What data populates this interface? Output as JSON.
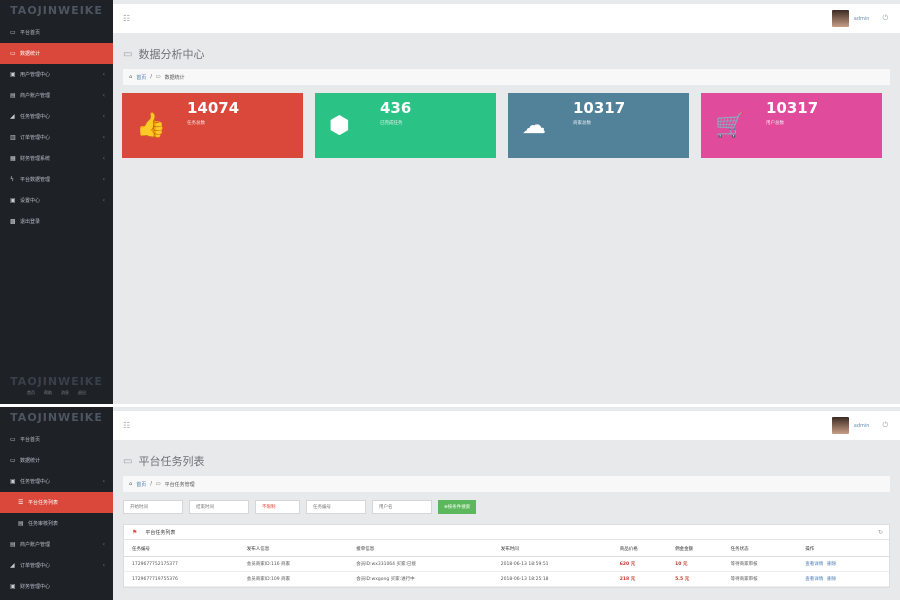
{
  "brand": "TAOJINWEIKE",
  "footer_links": [
    "首页",
    "帮助",
    "消息",
    "退出"
  ],
  "panel1": {
    "nav": [
      {
        "icon": "laptop-icon",
        "glyph": "▭",
        "label": "平台首页"
      },
      {
        "icon": "chart-icon",
        "glyph": "▭",
        "label": "数据统计",
        "active": true
      },
      {
        "icon": "lock-icon",
        "glyph": "▣",
        "label": "用户管理中心"
      },
      {
        "icon": "card-icon",
        "glyph": "▤",
        "label": "商户账户管理"
      },
      {
        "icon": "bar-chart-icon",
        "glyph": "◢",
        "label": "任务管理中心"
      },
      {
        "icon": "list-icon",
        "glyph": "▥",
        "label": "订单管理中心"
      },
      {
        "icon": "file-icon",
        "glyph": "▦",
        "label": "财务管理系统"
      },
      {
        "icon": "bolt-icon",
        "glyph": "ϟ",
        "label": "平台数据管理"
      },
      {
        "icon": "server-icon",
        "glyph": "▣",
        "label": "设置中心"
      },
      {
        "icon": "calendar-icon",
        "glyph": "▩",
        "label": "退出登录"
      }
    ],
    "page_title": "数据分析中心",
    "breadcrumb": {
      "home": "首页",
      "current": "数据统计"
    },
    "user": "admin",
    "stats": [
      {
        "value": "14074",
        "label": "任务总数",
        "color": "#d9483b",
        "icon": "thumbs-up-icon",
        "glyph": "👍"
      },
      {
        "value": "436",
        "label": "已完成任务",
        "color": "#2bc285",
        "icon": "cubes-icon",
        "glyph": "⬢"
      },
      {
        "value": "10317",
        "label": "商家总数",
        "color": "#52829a",
        "icon": "cloud-download-icon",
        "glyph": "☁"
      },
      {
        "value": "10317",
        "label": "用户总数",
        "color": "#e14b9c",
        "icon": "cart-icon",
        "glyph": "🛒"
      }
    ]
  },
  "panel2": {
    "nav": [
      {
        "icon": "laptop-icon",
        "glyph": "▭",
        "label": "平台首页"
      },
      {
        "icon": "chart-icon",
        "glyph": "▭",
        "label": "数据统计"
      },
      {
        "icon": "task-icon",
        "glyph": "▣",
        "label": "任务管理中心"
      },
      {
        "icon": "list-icon",
        "glyph": "☰",
        "label": "平台任务列表",
        "active": true,
        "sub": true
      },
      {
        "icon": "list-icon",
        "glyph": "▤",
        "label": "任务审核列表",
        "sub": true
      },
      {
        "icon": "card-icon",
        "glyph": "▤",
        "label": "商户账户管理"
      },
      {
        "icon": "bar-chart-icon",
        "glyph": "◢",
        "label": "订单管理中心"
      },
      {
        "icon": "server-icon",
        "glyph": "▣",
        "label": "财务管理中心"
      }
    ],
    "page_title": "平台任务列表",
    "breadcrumb": {
      "home": "首页",
      "current": "平台任务管理"
    },
    "user": "admin",
    "filters": [
      {
        "placeholder": "开始时间",
        "width": 60
      },
      {
        "placeholder": "结束时间",
        "width": 60
      },
      {
        "placeholder": "不限制",
        "width": 45,
        "red": true
      },
      {
        "placeholder": "任务编号",
        "width": 60
      },
      {
        "placeholder": "用户名",
        "width": 60
      }
    ],
    "search_button": "按条件搜索",
    "table_title": "平台任务列表",
    "columns": [
      "任务编号",
      "发布人信息",
      "接单信息",
      "发布时间",
      "商品价格",
      "佣金金额",
      "任务状态",
      "操作"
    ],
    "rows": [
      {
        "id": "1729677752175377",
        "publisher": "会员商家ID:116 商家",
        "receiver": "会员ID:wx331064 买家:已接",
        "time": "2018-06-13 18:59:51",
        "price": "620",
        "price_unit": "元",
        "commission": "10",
        "commission_unit": "元",
        "status": "等待商家审核",
        "actions": [
          "查看详情",
          "删除"
        ]
      },
      {
        "id": "1729677719755376",
        "publisher": "会员商家ID:109 商家",
        "receiver": "会员ID:wxgong 买家:进行中",
        "time": "2018-06-13 18:25:18",
        "price": "218",
        "price_unit": "元",
        "commission": "5.5",
        "commission_unit": "元",
        "status": "等待商家审核",
        "actions": [
          "查看详情",
          "删除"
        ]
      }
    ]
  }
}
